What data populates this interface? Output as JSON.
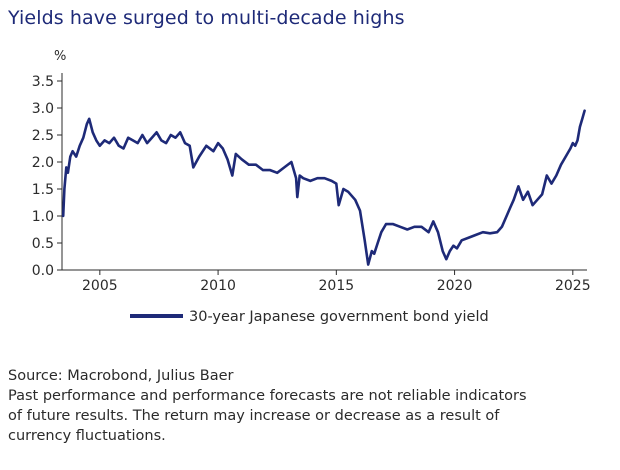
{
  "title": "Yields have surged to multi-decade highs",
  "notes": {
    "source": "Source: Macrobond, Julius Baer",
    "disclaimer_lines": [
      "Past performance and performance forecasts are not reliable indicators",
      "of future results. The return may increase or decrease as a result of",
      "currency fluctuations."
    ]
  },
  "colors": {
    "series": "#1e2a78",
    "title": "#1e2a78",
    "text": "#2b2b2b",
    "axis": "#2b2b2b"
  },
  "chart_data": {
    "type": "line",
    "title": "Yields have surged to multi-decade highs",
    "unit_label": "%",
    "xlabel": "",
    "ylabel": "",
    "xlim": [
      2003.4,
      2025.6
    ],
    "ylim": [
      0,
      3.5
    ],
    "y_ticks": [
      "0.0",
      "0.5",
      "1.0",
      "1.5",
      "2.0",
      "2.5",
      "3.0",
      "3.5"
    ],
    "x_ticks": [
      "2005",
      "2010",
      "2015",
      "2020",
      "2025"
    ],
    "grid": false,
    "legend": {
      "position": "bottom",
      "entries": [
        "30-year Japanese government bond yield"
      ]
    },
    "series": [
      {
        "name": "30-year Japanese government bond yield",
        "x": [
          2003.45,
          2003.5,
          2003.58,
          2003.65,
          2003.75,
          2003.85,
          2004.0,
          2004.15,
          2004.3,
          2004.45,
          2004.55,
          2004.7,
          2004.85,
          2005.0,
          2005.2,
          2005.4,
          2005.6,
          2005.8,
          2006.0,
          2006.2,
          2006.4,
          2006.6,
          2006.8,
          2007.0,
          2007.2,
          2007.4,
          2007.6,
          2007.8,
          2008.0,
          2008.2,
          2008.4,
          2008.6,
          2008.8,
          2008.95,
          2009.2,
          2009.5,
          2009.8,
          2010.0,
          2010.2,
          2010.4,
          2010.6,
          2010.75,
          2011.0,
          2011.3,
          2011.6,
          2011.9,
          2012.2,
          2012.5,
          2012.8,
          2013.1,
          2013.3,
          2013.35,
          2013.45,
          2013.6,
          2013.9,
          2014.2,
          2014.5,
          2014.8,
          2015.0,
          2015.1,
          2015.3,
          2015.5,
          2015.8,
          2016.0,
          2016.2,
          2016.35,
          2016.5,
          2016.6,
          2016.75,
          2016.9,
          2017.1,
          2017.4,
          2017.7,
          2018.0,
          2018.3,
          2018.6,
          2018.9,
          2019.1,
          2019.3,
          2019.5,
          2019.65,
          2019.8,
          2019.95,
          2020.1,
          2020.3,
          2020.6,
          2020.9,
          2021.2,
          2021.5,
          2021.8,
          2022.0,
          2022.2,
          2022.35,
          2022.5,
          2022.7,
          2022.9,
          2023.1,
          2023.3,
          2023.5,
          2023.7,
          2023.9,
          2024.1,
          2024.3,
          2024.5,
          2024.7,
          2024.9,
          2025.0,
          2025.1,
          2025.2,
          2025.3,
          2025.4,
          2025.5
        ],
        "values": [
          1.0,
          1.5,
          1.9,
          1.8,
          2.1,
          2.2,
          2.1,
          2.3,
          2.45,
          2.7,
          2.8,
          2.55,
          2.4,
          2.3,
          2.4,
          2.35,
          2.45,
          2.3,
          2.25,
          2.45,
          2.4,
          2.35,
          2.5,
          2.35,
          2.45,
          2.55,
          2.4,
          2.35,
          2.5,
          2.45,
          2.55,
          2.35,
          2.3,
          1.9,
          2.1,
          2.3,
          2.2,
          2.35,
          2.25,
          2.05,
          1.75,
          2.15,
          2.05,
          1.95,
          1.95,
          1.85,
          1.85,
          1.8,
          1.9,
          2.0,
          1.7,
          1.35,
          1.75,
          1.7,
          1.65,
          1.7,
          1.7,
          1.65,
          1.6,
          1.2,
          1.5,
          1.45,
          1.3,
          1.1,
          0.55,
          0.1,
          0.35,
          0.3,
          0.5,
          0.7,
          0.85,
          0.85,
          0.8,
          0.75,
          0.8,
          0.8,
          0.7,
          0.9,
          0.7,
          0.35,
          0.2,
          0.35,
          0.45,
          0.4,
          0.55,
          0.6,
          0.65,
          0.7,
          0.68,
          0.7,
          0.8,
          1.0,
          1.15,
          1.3,
          1.55,
          1.3,
          1.45,
          1.2,
          1.3,
          1.4,
          1.75,
          1.6,
          1.75,
          1.95,
          2.1,
          2.25,
          2.35,
          2.3,
          2.4,
          2.65,
          2.8,
          2.95
        ]
      }
    ]
  }
}
